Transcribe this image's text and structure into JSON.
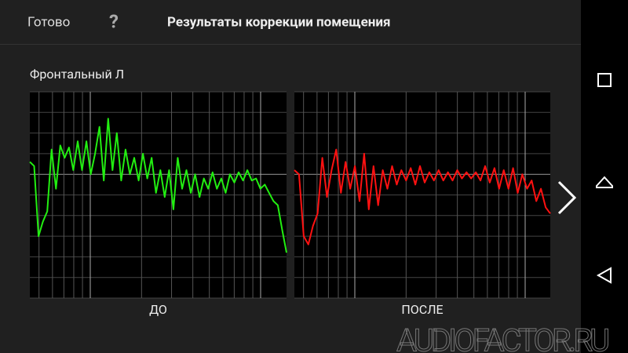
{
  "header": {
    "done": "Готово",
    "help": "?",
    "title": "Результаты коррекции помещения"
  },
  "section_title": "Фронтальный Л",
  "watermark": "AUDIOFACTOR.RU",
  "chart_data": [
    {
      "type": "line",
      "title": "ДО",
      "color": "#22ee11",
      "ylim": [
        -6,
        4
      ],
      "values": [
        0.6,
        0.4,
        -3.0,
        -2.3,
        -1.8,
        1.2,
        -0.7,
        1.4,
        0.8,
        1.3,
        0.2,
        1.6,
        0.2,
        1.6,
        0.0,
        1.0,
        2.3,
        -0.3,
        2.7,
        0.2,
        2.0,
        -0.3,
        1.2,
        0.0,
        0.8,
        -0.3,
        1.0,
        -0.2,
        0.8,
        -0.9,
        0.2,
        -1.1,
        0.2,
        -1.7,
        0.8,
        -0.7,
        0.2,
        -0.9,
        0.0,
        -1.1,
        -0.2,
        -0.7,
        0.1,
        -0.7,
        -0.2,
        -0.9,
        0.0,
        -0.4,
        0.1,
        -0.3,
        0.2,
        -0.3,
        -0.2,
        -0.7,
        -0.5,
        -0.9,
        -1.3,
        -1.5,
        -2.7,
        -3.8
      ]
    },
    {
      "type": "line",
      "title": "ПОСЛЕ",
      "color": "#ff1111",
      "ylim": [
        -6,
        4
      ],
      "values": [
        0.2,
        0.0,
        -3.0,
        -3.4,
        -2.5,
        -1.9,
        0.8,
        -1.1,
        0.2,
        1.2,
        -0.9,
        0.6,
        -0.7,
        0.4,
        -1.3,
        1.0,
        -1.7,
        0.4,
        -1.5,
        0.2,
        -0.7,
        0.4,
        -0.5,
        0.2,
        -0.3,
        0.3,
        -0.5,
        0.4,
        -0.4,
        0.1,
        -0.3,
        0.2,
        -0.3,
        0.1,
        -0.3,
        0.2,
        -0.2,
        0.1,
        -0.2,
        0.1,
        -0.3,
        0.4,
        -0.4,
        0.3,
        -0.7,
        0.2,
        -0.7,
        0.3,
        -0.9,
        0.0,
        -0.7,
        -0.3,
        -1.3,
        -0.7,
        -1.6,
        -1.9
      ]
    }
  ]
}
